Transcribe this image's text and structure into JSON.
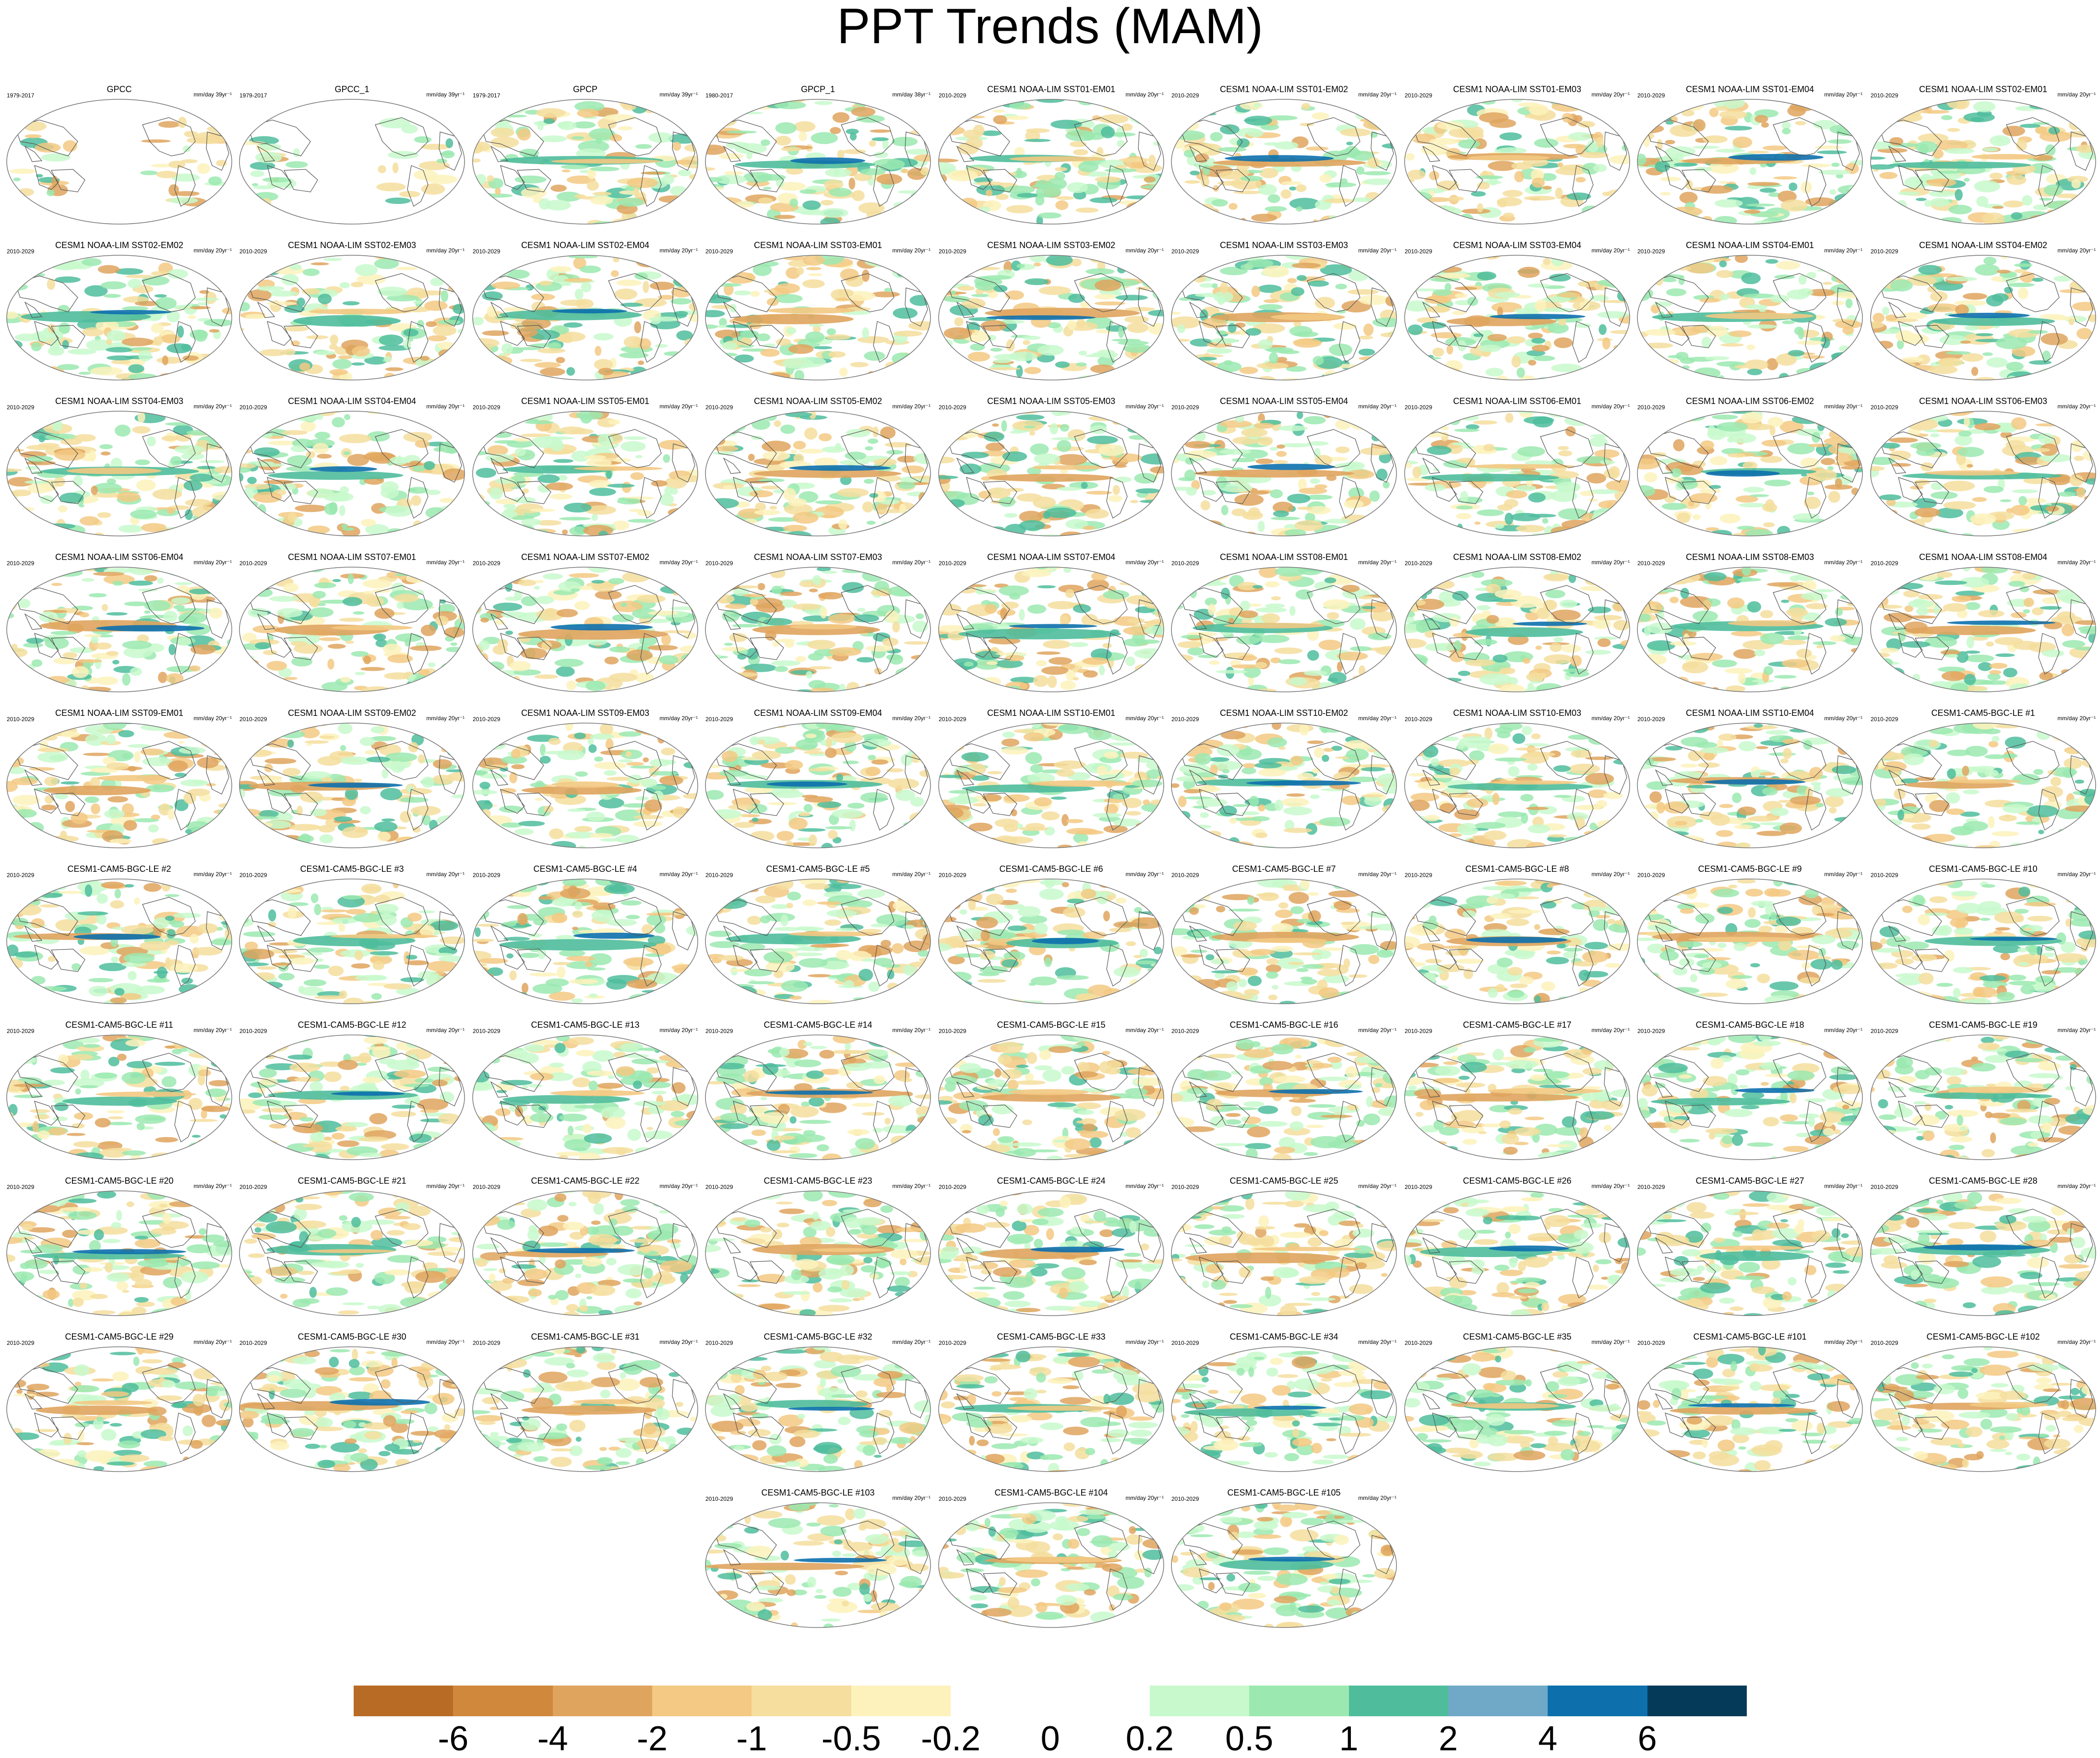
{
  "title": "PPT Trends (MAM)",
  "colors": {
    "levels": [
      "#b86b25",
      "#cf883c",
      "#dfa45e",
      "#f3c983",
      "#f5de9e",
      "#fdf2bc",
      "#ffffff",
      "#ffffff",
      "#c8f9cc",
      "#9be9b0",
      "#4fbd9c",
      "#70a9c8",
      "#0d70ad",
      "#053b59"
    ],
    "land_outline": "#555555",
    "map_border": "#777777"
  },
  "colorbar": {
    "labels": [
      "-6",
      "-4",
      "-2",
      "-1",
      "-0.5",
      "-0.2",
      "0",
      "0.2",
      "0.5",
      "1",
      "2",
      "4",
      "6"
    ]
  },
  "panels": [
    {
      "name": "GPCC",
      "period": "1979-2017",
      "units": "mm/day 39yr⁻¹"
    },
    {
      "name": "GPCC_1",
      "period": "1979-2017",
      "units": "mm/day 39yr⁻¹"
    },
    {
      "name": "GPCP",
      "period": "1979-2017",
      "units": "mm/day 39yr⁻¹"
    },
    {
      "name": "GPCP_1",
      "period": "1980-2017",
      "units": "mm/day 38yr⁻¹"
    },
    {
      "name": "CESM1 NOAA-LIM SST01-EM01",
      "period": "2010-2029",
      "units": "mm/day 20yr⁻¹"
    },
    {
      "name": "CESM1 NOAA-LIM SST01-EM02",
      "period": "2010-2029",
      "units": "mm/day 20yr⁻¹"
    },
    {
      "name": "CESM1 NOAA-LIM SST01-EM03",
      "period": "2010-2029",
      "units": "mm/day 20yr⁻¹"
    },
    {
      "name": "CESM1 NOAA-LIM SST01-EM04",
      "period": "2010-2029",
      "units": "mm/day 20yr⁻¹"
    },
    {
      "name": "CESM1 NOAA-LIM SST02-EM01",
      "period": "2010-2029",
      "units": "mm/day 20yr⁻¹"
    },
    {
      "name": "CESM1 NOAA-LIM SST02-EM02",
      "period": "2010-2029",
      "units": "mm/day 20yr⁻¹"
    },
    {
      "name": "CESM1 NOAA-LIM SST02-EM03",
      "period": "2010-2029",
      "units": "mm/day 20yr⁻¹"
    },
    {
      "name": "CESM1 NOAA-LIM SST02-EM04",
      "period": "2010-2029",
      "units": "mm/day 20yr⁻¹"
    },
    {
      "name": "CESM1 NOAA-LIM SST03-EM01",
      "period": "2010-2029",
      "units": "mm/day 20yr⁻¹"
    },
    {
      "name": "CESM1 NOAA-LIM SST03-EM02",
      "period": "2010-2029",
      "units": "mm/day 20yr⁻¹"
    },
    {
      "name": "CESM1 NOAA-LIM SST03-EM03",
      "period": "2010-2029",
      "units": "mm/day 20yr⁻¹"
    },
    {
      "name": "CESM1 NOAA-LIM SST03-EM04",
      "period": "2010-2029",
      "units": "mm/day 20yr⁻¹"
    },
    {
      "name": "CESM1 NOAA-LIM SST04-EM01",
      "period": "2010-2029",
      "units": "mm/day 20yr⁻¹"
    },
    {
      "name": "CESM1 NOAA-LIM SST04-EM02",
      "period": "2010-2029",
      "units": "mm/day 20yr⁻¹"
    },
    {
      "name": "CESM1 NOAA-LIM SST04-EM03",
      "period": "2010-2029",
      "units": "mm/day 20yr⁻¹"
    },
    {
      "name": "CESM1 NOAA-LIM SST04-EM04",
      "period": "2010-2029",
      "units": "mm/day 20yr⁻¹"
    },
    {
      "name": "CESM1 NOAA-LIM SST05-EM01",
      "period": "2010-2029",
      "units": "mm/day 20yr⁻¹"
    },
    {
      "name": "CESM1 NOAA-LIM SST05-EM02",
      "period": "2010-2029",
      "units": "mm/day 20yr⁻¹"
    },
    {
      "name": "CESM1 NOAA-LIM SST05-EM03",
      "period": "2010-2029",
      "units": "mm/day 20yr⁻¹"
    },
    {
      "name": "CESM1 NOAA-LIM SST05-EM04",
      "period": "2010-2029",
      "units": "mm/day 20yr⁻¹"
    },
    {
      "name": "CESM1 NOAA-LIM SST06-EM01",
      "period": "2010-2029",
      "units": "mm/day 20yr⁻¹"
    },
    {
      "name": "CESM1 NOAA-LIM SST06-EM02",
      "period": "2010-2029",
      "units": "mm/day 20yr⁻¹"
    },
    {
      "name": "CESM1 NOAA-LIM SST06-EM03",
      "period": "2010-2029",
      "units": "mm/day 20yr⁻¹"
    },
    {
      "name": "CESM1 NOAA-LIM SST06-EM04",
      "period": "2010-2029",
      "units": "mm/day 20yr⁻¹"
    },
    {
      "name": "CESM1 NOAA-LIM SST07-EM01",
      "period": "2010-2029",
      "units": "mm/day 20yr⁻¹"
    },
    {
      "name": "CESM1 NOAA-LIM SST07-EM02",
      "period": "2010-2029",
      "units": "mm/day 20yr⁻¹"
    },
    {
      "name": "CESM1 NOAA-LIM SST07-EM03",
      "period": "2010-2029",
      "units": "mm/day 20yr⁻¹"
    },
    {
      "name": "CESM1 NOAA-LIM SST07-EM04",
      "period": "2010-2029",
      "units": "mm/day 20yr⁻¹"
    },
    {
      "name": "CESM1 NOAA-LIM SST08-EM01",
      "period": "2010-2029",
      "units": "mm/day 20yr⁻¹"
    },
    {
      "name": "CESM1 NOAA-LIM SST08-EM02",
      "period": "2010-2029",
      "units": "mm/day 20yr⁻¹"
    },
    {
      "name": "CESM1 NOAA-LIM SST08-EM03",
      "period": "2010-2029",
      "units": "mm/day 20yr⁻¹"
    },
    {
      "name": "CESM1 NOAA-LIM SST08-EM04",
      "period": "2010-2029",
      "units": "mm/day 20yr⁻¹"
    },
    {
      "name": "CESM1 NOAA-LIM SST09-EM01",
      "period": "2010-2029",
      "units": "mm/day 20yr⁻¹"
    },
    {
      "name": "CESM1 NOAA-LIM SST09-EM02",
      "period": "2010-2029",
      "units": "mm/day 20yr⁻¹"
    },
    {
      "name": "CESM1 NOAA-LIM SST09-EM03",
      "period": "2010-2029",
      "units": "mm/day 20yr⁻¹"
    },
    {
      "name": "CESM1 NOAA-LIM SST09-EM04",
      "period": "2010-2029",
      "units": "mm/day 20yr⁻¹"
    },
    {
      "name": "CESM1 NOAA-LIM SST10-EM01",
      "period": "2010-2029",
      "units": "mm/day 20yr⁻¹"
    },
    {
      "name": "CESM1 NOAA-LIM SST10-EM02",
      "period": "2010-2029",
      "units": "mm/day 20yr⁻¹"
    },
    {
      "name": "CESM1 NOAA-LIM SST10-EM03",
      "period": "2010-2029",
      "units": "mm/day 20yr⁻¹"
    },
    {
      "name": "CESM1 NOAA-LIM SST10-EM04",
      "period": "2010-2029",
      "units": "mm/day 20yr⁻¹"
    },
    {
      "name": "CESM1-CAM5-BGC-LE #1",
      "period": "2010-2029",
      "units": "mm/day 20yr⁻¹"
    },
    {
      "name": "CESM1-CAM5-BGC-LE #2",
      "period": "2010-2029",
      "units": "mm/day 20yr⁻¹"
    },
    {
      "name": "CESM1-CAM5-BGC-LE #3",
      "period": "2010-2029",
      "units": "mm/day 20yr⁻¹"
    },
    {
      "name": "CESM1-CAM5-BGC-LE #4",
      "period": "2010-2029",
      "units": "mm/day 20yr⁻¹"
    },
    {
      "name": "CESM1-CAM5-BGC-LE #5",
      "period": "2010-2029",
      "units": "mm/day 20yr⁻¹"
    },
    {
      "name": "CESM1-CAM5-BGC-LE #6",
      "period": "2010-2029",
      "units": "mm/day 20yr⁻¹"
    },
    {
      "name": "CESM1-CAM5-BGC-LE #7",
      "period": "2010-2029",
      "units": "mm/day 20yr⁻¹"
    },
    {
      "name": "CESM1-CAM5-BGC-LE #8",
      "period": "2010-2029",
      "units": "mm/day 20yr⁻¹"
    },
    {
      "name": "CESM1-CAM5-BGC-LE #9",
      "period": "2010-2029",
      "units": "mm/day 20yr⁻¹"
    },
    {
      "name": "CESM1-CAM5-BGC-LE #10",
      "period": "2010-2029",
      "units": "mm/day 20yr⁻¹"
    },
    {
      "name": "CESM1-CAM5-BGC-LE #11",
      "period": "2010-2029",
      "units": "mm/day 20yr⁻¹"
    },
    {
      "name": "CESM1-CAM5-BGC-LE #12",
      "period": "2010-2029",
      "units": "mm/day 20yr⁻¹"
    },
    {
      "name": "CESM1-CAM5-BGC-LE #13",
      "period": "2010-2029",
      "units": "mm/day 20yr⁻¹"
    },
    {
      "name": "CESM1-CAM5-BGC-LE #14",
      "period": "2010-2029",
      "units": "mm/day 20yr⁻¹"
    },
    {
      "name": "CESM1-CAM5-BGC-LE #15",
      "period": "2010-2029",
      "units": "mm/day 20yr⁻¹"
    },
    {
      "name": "CESM1-CAM5-BGC-LE #16",
      "period": "2010-2029",
      "units": "mm/day 20yr⁻¹"
    },
    {
      "name": "CESM1-CAM5-BGC-LE #17",
      "period": "2010-2029",
      "units": "mm/day 20yr⁻¹"
    },
    {
      "name": "CESM1-CAM5-BGC-LE #18",
      "period": "2010-2029",
      "units": "mm/day 20yr⁻¹"
    },
    {
      "name": "CESM1-CAM5-BGC-LE #19",
      "period": "2010-2029",
      "units": "mm/day 20yr⁻¹"
    },
    {
      "name": "CESM1-CAM5-BGC-LE #20",
      "period": "2010-2029",
      "units": "mm/day 20yr⁻¹"
    },
    {
      "name": "CESM1-CAM5-BGC-LE #21",
      "period": "2010-2029",
      "units": "mm/day 20yr⁻¹"
    },
    {
      "name": "CESM1-CAM5-BGC-LE #22",
      "period": "2010-2029",
      "units": "mm/day 20yr⁻¹"
    },
    {
      "name": "CESM1-CAM5-BGC-LE #23",
      "period": "2010-2029",
      "units": "mm/day 20yr⁻¹"
    },
    {
      "name": "CESM1-CAM5-BGC-LE #24",
      "period": "2010-2029",
      "units": "mm/day 20yr⁻¹"
    },
    {
      "name": "CESM1-CAM5-BGC-LE #25",
      "period": "2010-2029",
      "units": "mm/day 20yr⁻¹"
    },
    {
      "name": "CESM1-CAM5-BGC-LE #26",
      "period": "2010-2029",
      "units": "mm/day 20yr⁻¹"
    },
    {
      "name": "CESM1-CAM5-BGC-LE #27",
      "period": "2010-2029",
      "units": "mm/day 20yr⁻¹"
    },
    {
      "name": "CESM1-CAM5-BGC-LE #28",
      "period": "2010-2029",
      "units": "mm/day 20yr⁻¹"
    },
    {
      "name": "CESM1-CAM5-BGC-LE #29",
      "period": "2010-2029",
      "units": "mm/day 20yr⁻¹"
    },
    {
      "name": "CESM1-CAM5-BGC-LE #30",
      "period": "2010-2029",
      "units": "mm/day 20yr⁻¹"
    },
    {
      "name": "CESM1-CAM5-BGC-LE #31",
      "period": "2010-2029",
      "units": "mm/day 20yr⁻¹"
    },
    {
      "name": "CESM1-CAM5-BGC-LE #32",
      "period": "2010-2029",
      "units": "mm/day 20yr⁻¹"
    },
    {
      "name": "CESM1-CAM5-BGC-LE #33",
      "period": "2010-2029",
      "units": "mm/day 20yr⁻¹"
    },
    {
      "name": "CESM1-CAM5-BGC-LE #34",
      "period": "2010-2029",
      "units": "mm/day 20yr⁻¹"
    },
    {
      "name": "CESM1-CAM5-BGC-LE #35",
      "period": "2010-2029",
      "units": "mm/day 20yr⁻¹"
    },
    {
      "name": "CESM1-CAM5-BGC-LE #101",
      "period": "2010-2029",
      "units": "mm/day 20yr⁻¹"
    },
    {
      "name": "CESM1-CAM5-BGC-LE #102",
      "period": "2010-2029",
      "units": "mm/day 20yr⁻¹"
    },
    {
      "name": "CESM1-CAM5-BGC-LE #103",
      "period": "2010-2029",
      "units": "mm/day 20yr⁻¹"
    },
    {
      "name": "CESM1-CAM5-BGC-LE #104",
      "period": "2010-2029",
      "units": "mm/day 20yr⁻¹"
    },
    {
      "name": "CESM1-CAM5-BGC-LE #105",
      "period": "2010-2029",
      "units": "mm/day 20yr⁻¹"
    }
  ]
}
